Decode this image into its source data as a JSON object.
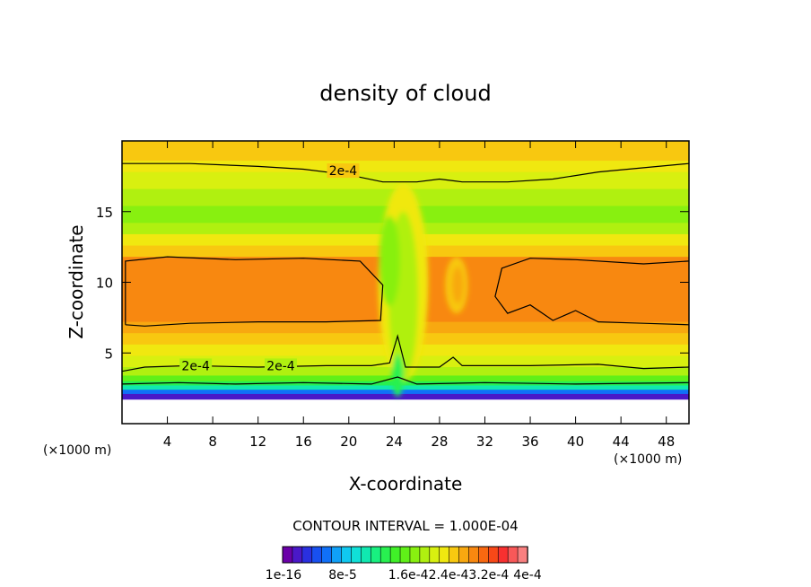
{
  "chart_data": {
    "type": "heatmap",
    "title": "density of cloud",
    "xlabel": "X-coordinate",
    "ylabel": "Z-coordinate",
    "x_unit": "(×1000 m)",
    "x_unit_right": "(×1000 m)",
    "xlim": [
      0,
      50
    ],
    "ylim": [
      0,
      20
    ],
    "x_ticks": [
      4,
      8,
      12,
      16,
      20,
      24,
      28,
      32,
      36,
      40,
      44,
      48
    ],
    "y_ticks": [
      5,
      10,
      15
    ],
    "contour_interval_text": "CONTOUR INTERVAL = 1.000E-04",
    "contour_labels": [
      {
        "text": "2e-4",
        "x": 19.5,
        "z": 17.9
      },
      {
        "text": "2e-4",
        "x": 6.5,
        "z": 4.1
      },
      {
        "text": "2e-4",
        "x": 14.0,
        "z": 4.1
      }
    ],
    "colorbar": {
      "labels": [
        "1e-16",
        "8e-5",
        "1.6e-4",
        "2.4e-4",
        "3.2e-4",
        "4e-4"
      ],
      "label_text": [
        "1e-16",
        "8e-5",
        "1.6e-42.4e-43.2e-4",
        "4e-4"
      ],
      "min": 0,
      "max": 0.0004,
      "colors": [
        "#6a00a8",
        "#4a18c8",
        "#2a30e0",
        "#1850f0",
        "#1070f8",
        "#10a0f8",
        "#10c8f0",
        "#10e0d8",
        "#10e8b0",
        "#18f080",
        "#28f050",
        "#40f028",
        "#60f018",
        "#88f010",
        "#b0f010",
        "#d8f010",
        "#f0e810",
        "#f8c810",
        "#f8a810",
        "#f88810",
        "#f86810",
        "#f84818",
        "#f83030",
        "#f85858",
        "#f88080"
      ]
    }
  }
}
